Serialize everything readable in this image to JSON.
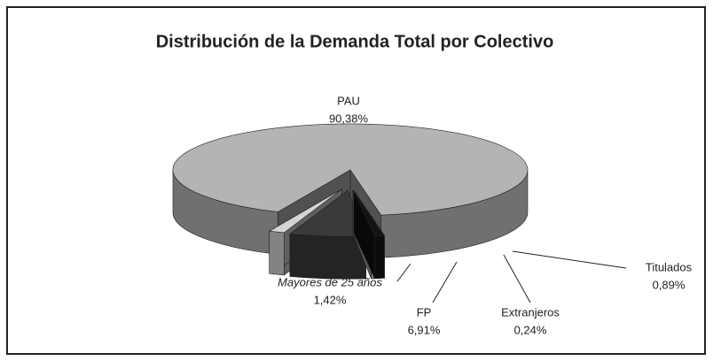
{
  "chart_data": {
    "type": "pie3d",
    "title": "Distribución de la Demanda Total por Colectivo",
    "categories": [
      "PAU",
      "Mayores de 25 años",
      "FP",
      "Extranjeros",
      "Titulados"
    ],
    "values": [
      90.38,
      1.42,
      6.91,
      0.24,
      0.89
    ],
    "value_labels": [
      "90,38%",
      "1,42%",
      "6,91%",
      "0,24%",
      "0,89%"
    ],
    "colors": [
      "#b4b4b4",
      "#d4d4d4",
      "#3a3a3a",
      "#c8c8c8",
      "#141414"
    ]
  }
}
